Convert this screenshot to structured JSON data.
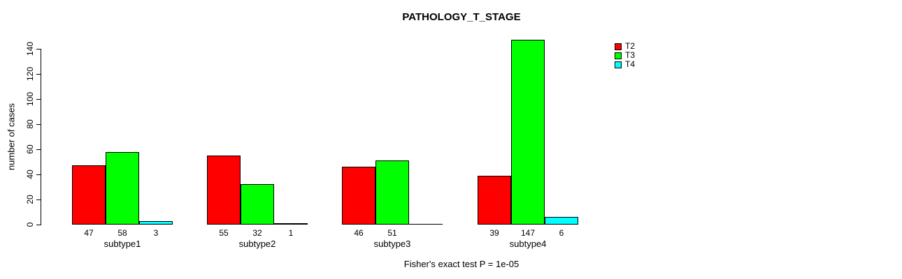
{
  "chart_data": {
    "type": "bar",
    "title": "PATHOLOGY_T_STAGE",
    "ylabel": "number of cases",
    "xlabel": "",
    "caption": "Fisher's exact test P = 1e-05",
    "categories": [
      "subtype1",
      "subtype2",
      "subtype3",
      "subtype4"
    ],
    "series": [
      {
        "name": "T2",
        "color": "#ff0000",
        "values": [
          47,
          55,
          46,
          39
        ]
      },
      {
        "name": "T3",
        "color": "#00ff00",
        "values": [
          58,
          32,
          51,
          147
        ]
      },
      {
        "name": "T4",
        "color": "#00ffff",
        "values": [
          3,
          1,
          0,
          6
        ]
      }
    ],
    "value_labels_shown_under_bars": true,
    "zero_values_unlabeled": true,
    "yticks": [
      0,
      20,
      40,
      60,
      80,
      100,
      120,
      140
    ],
    "ylim": [
      0,
      147
    ],
    "grid": false,
    "legend_position": "top-right",
    "background_color": "#ffffff",
    "axis_color": "#000000"
  }
}
